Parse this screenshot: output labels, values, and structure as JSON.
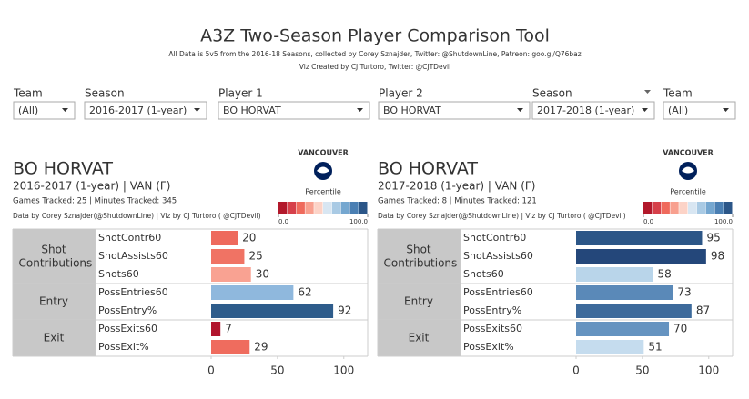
{
  "header": {
    "title": "A3Z Two-Season Player Comparison Tool",
    "lines": [
      "All Data is 5v5 from the 2016-18 Seasons, collected by Corey Sznajder, Twitter: @ShutdownLine, Patreon: goo.gl/Q76baz",
      "Viz Created by CJ Turtoro, Twitter: @CJTDevil"
    ]
  },
  "filters": [
    {
      "label": "Team",
      "value": "(All)"
    },
    {
      "label": "Season",
      "value": "2016-2017 (1-year)"
    },
    {
      "label": "Player 1",
      "value": "BO HORVAT"
    },
    {
      "label": "Player 2",
      "value": "BO HORVAT"
    },
    {
      "label": "Season",
      "value": "2017-2018 (1-year)"
    },
    {
      "label": "Team",
      "value": "(All)"
    }
  ],
  "chart_data": [
    {
      "type": "bar",
      "player": "BO HORVAT",
      "season_line": "2016-2017 (1-year) | VAN (F)",
      "stats_line": "Games Tracked: 25  | Minutes Tracked: 345",
      "credit": "Data by Corey Sznajder(@ShutdownLine) | Viz by CJ Turtoro ( @CJTDevil)",
      "logo_text": "VANCOUVER",
      "legend_title": "Percentile",
      "legend_colors": [
        "#b2182b",
        "#d6404a",
        "#ef6a5c",
        "#f8a08f",
        "#fcd3c7",
        "#d8e6f2",
        "#a9cae4",
        "#75a7d0",
        "#4a7fb3",
        "#2b5688"
      ],
      "legend_ticks": [
        {
          "value": 0,
          "label": "0.0"
        },
        {
          "value": 100,
          "label": "100.0"
        }
      ],
      "groups": [
        {
          "name": "Shot Contributions",
          "categories": [
            "ShotContr60",
            "ShotAssists60",
            "Shots60"
          ],
          "values": [
            20,
            25,
            30
          ],
          "colors": [
            "#ee6a5d",
            "#f07364",
            "#f9a292"
          ]
        },
        {
          "name": "Entry",
          "categories": [
            "PossEntries60",
            "PossEntry%"
          ],
          "values": [
            62,
            92
          ],
          "colors": [
            "#8fb8dd",
            "#2e5c8b"
          ]
        },
        {
          "name": "Exit",
          "categories": [
            "PossExits60",
            "PossExit%"
          ],
          "values": [
            7,
            29
          ],
          "colors": [
            "#b1142d",
            "#ef6c5e"
          ]
        }
      ],
      "xlim": [
        0,
        118
      ],
      "xticks": [
        0,
        50,
        100
      ]
    },
    {
      "type": "bar",
      "player": "BO HORVAT",
      "season_line": "2017-2018 (1-year) | VAN (F)",
      "stats_line": "Games Tracked: 8  | Minutes Tracked: 121",
      "credit": "Data by Corey Sznajder(@ShutdownLine) | Viz by CJ Turtoro ( @CJTDevil)",
      "logo_text": "VANCOUVER",
      "legend_title": "Percentile",
      "legend_colors": [
        "#b2182b",
        "#d6404a",
        "#ef6a5c",
        "#f8a08f",
        "#fcd3c7",
        "#d8e6f2",
        "#a9cae4",
        "#75a7d0",
        "#4a7fb3",
        "#2b5688"
      ],
      "legend_ticks": [
        {
          "value": 0,
          "label": "0.0"
        },
        {
          "value": 100,
          "label": "100.0"
        }
      ],
      "groups": [
        {
          "name": "Shot Contributions",
          "categories": [
            "ShotContr60",
            "ShotAssists60",
            "Shots60"
          ],
          "values": [
            95,
            98,
            58
          ],
          "colors": [
            "#2c5687",
            "#24477a",
            "#b9d5ea"
          ]
        },
        {
          "name": "Entry",
          "categories": [
            "PossEntries60",
            "PossEntry%"
          ],
          "values": [
            73,
            87
          ],
          "colors": [
            "#5a89b8",
            "#3d6a9b"
          ]
        },
        {
          "name": "Exit",
          "categories": [
            "PossExits60",
            "PossExit%"
          ],
          "values": [
            70,
            51
          ],
          "colors": [
            "#6593c0",
            "#c5dcee"
          ]
        }
      ],
      "xlim": [
        0,
        118
      ],
      "xticks": [
        0,
        50,
        100
      ]
    }
  ]
}
